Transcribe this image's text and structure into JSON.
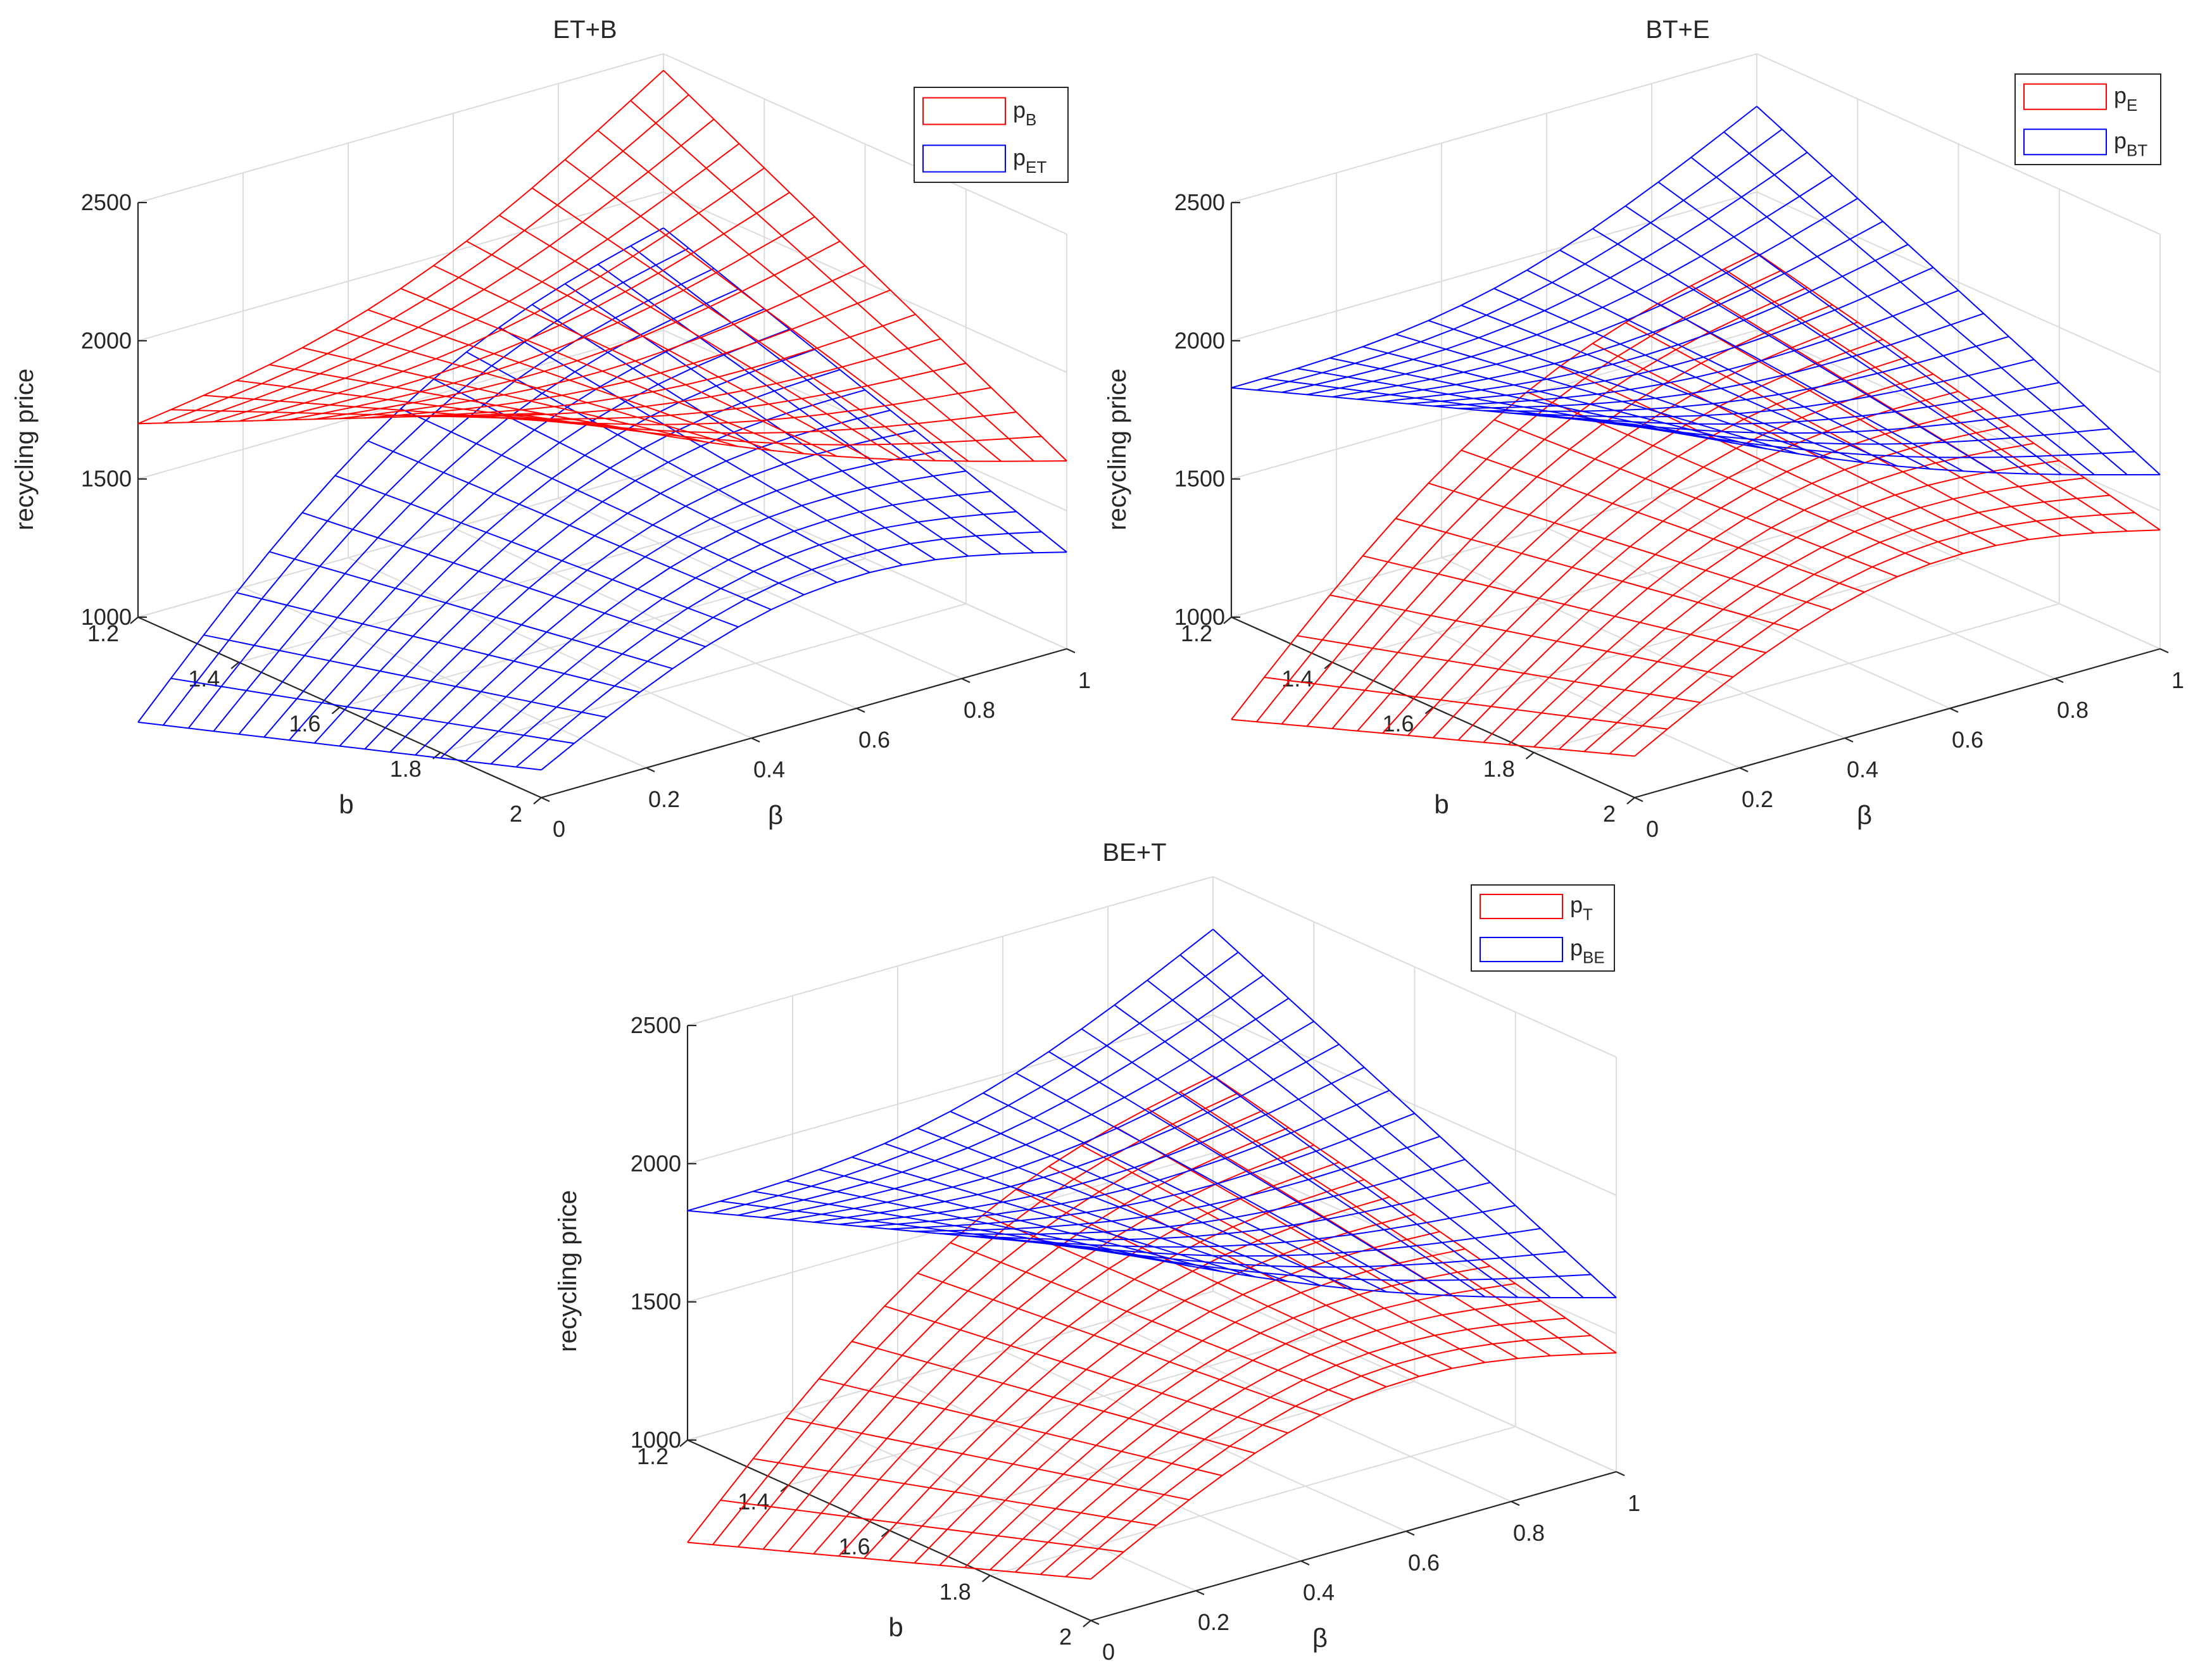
{
  "chart_data": [
    {
      "type": "surface",
      "title": "ET+B",
      "xlabel": "β",
      "ylabel": "b",
      "zlabel": "recycling price",
      "xlim": [
        0,
        1
      ],
      "ylim": [
        1.2,
        2
      ],
      "zlim": [
        1000,
        2500
      ],
      "xticks": [
        "0",
        "0.2",
        "0.4",
        "0.6",
        "0.8",
        "1"
      ],
      "yticks": [
        "1.2",
        "1.4",
        "1.6",
        "1.8",
        "2"
      ],
      "zticks": [
        "1000",
        "1500",
        "2000",
        "2500"
      ],
      "grid": "on",
      "legend_position": "top-right",
      "legend": [
        {
          "base": "p",
          "sub": "B",
          "color": "#ff0000"
        },
        {
          "base": "p",
          "sub": "ET",
          "color": "#0000ff"
        }
      ],
      "series": [
        {
          "name": "pB",
          "color": "#ff0000",
          "corners": {
            "b2_beta0": 2390,
            "b2_beta1": 1680,
            "b12_beta0": 1700,
            "b12_beta1": 2440
          }
        },
        {
          "name": "pET",
          "color": "#0000ff",
          "corners": {
            "b2_beta0": 1100,
            "b2_beta1": 1350,
            "b12_beta0": 620,
            "b12_beta1": 1870
          }
        }
      ]
    },
    {
      "type": "surface",
      "title": "BT+E",
      "xlabel": "β",
      "ylabel": "b",
      "zlabel": "recycling price",
      "xlim": [
        0,
        1
      ],
      "ylim": [
        1.2,
        2
      ],
      "zlim": [
        1000,
        2500
      ],
      "xticks": [
        "0",
        "0.2",
        "0.4",
        "0.6",
        "0.8",
        "1"
      ],
      "yticks": [
        "1.2",
        "1.4",
        "1.6",
        "1.8",
        "2"
      ],
      "zticks": [
        "1000",
        "1500",
        "2000",
        "2500"
      ],
      "grid": "on",
      "legend_position": "top-right",
      "legend": [
        {
          "base": "p",
          "sub": "E",
          "color": "#ff0000"
        },
        {
          "base": "p",
          "sub": "BT",
          "color": "#0000ff"
        }
      ],
      "series": [
        {
          "name": "pE",
          "color": "#ff0000",
          "corners": {
            "b2_beta0": 1150,
            "b2_beta1": 1430,
            "b12_beta0": 630,
            "b12_beta1": 1780
          }
        },
        {
          "name": "pBT",
          "color": "#0000ff",
          "corners": {
            "b2_beta0": 2350,
            "b2_beta1": 1630,
            "b12_beta0": 1830,
            "b12_beta1": 2310
          }
        }
      ]
    },
    {
      "type": "surface",
      "title": "BE+T",
      "xlabel": "β",
      "ylabel": "b",
      "zlabel": "recycling price",
      "xlim": [
        0,
        1
      ],
      "ylim": [
        1.2,
        2
      ],
      "zlim": [
        1000,
        2500
      ],
      "xticks": [
        "0",
        "0.2",
        "0.4",
        "0.6",
        "0.8",
        "1"
      ],
      "yticks": [
        "1.2",
        "1.4",
        "1.6",
        "1.8",
        "2"
      ],
      "zticks": [
        "1000",
        "1500",
        "2000",
        "2500"
      ],
      "grid": "on",
      "legend_position": "top-right",
      "legend": [
        {
          "base": "p",
          "sub": "T",
          "color": "#ff0000"
        },
        {
          "base": "p",
          "sub": "BE",
          "color": "#0000ff"
        }
      ],
      "series": [
        {
          "name": "pT",
          "color": "#ff0000",
          "corners": {
            "b2_beta0": 1150,
            "b2_beta1": 1430,
            "b12_beta0": 630,
            "b12_beta1": 1780
          }
        },
        {
          "name": "pBE",
          "color": "#0000ff",
          "corners": {
            "b2_beta0": 2350,
            "b2_beta1": 1630,
            "b12_beta0": 1830,
            "b12_beta1": 2310
          }
        }
      ]
    }
  ]
}
